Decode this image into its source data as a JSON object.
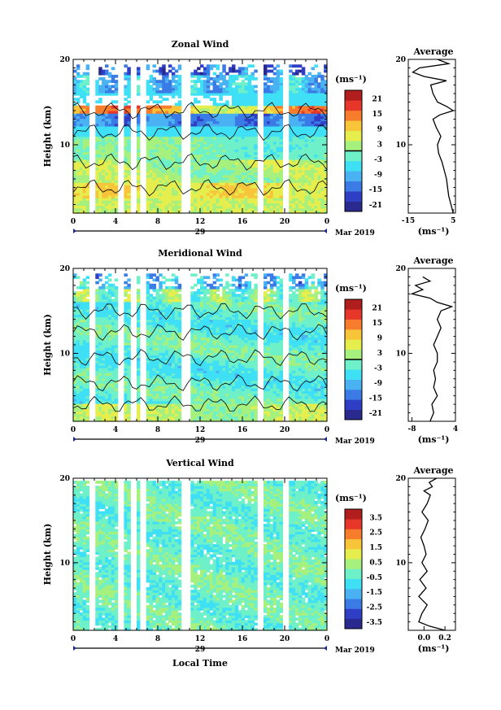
{
  "figure": {
    "xlabel": "Local Time",
    "date_label": "Mar 2019",
    "day_label": "29",
    "avg_title": "Average",
    "unit": "(ms⁻¹)",
    "ylabel": "Height (km)"
  },
  "chart_data": [
    {
      "type": "heatmap",
      "title": "Zonal Wind",
      "ylabel": "Height (km)",
      "xlabel": "",
      "xlim": [
        0,
        24
      ],
      "ylim": [
        2,
        20
      ],
      "xticks": [
        "0",
        "4",
        "8",
        "12",
        "16",
        "20",
        "0"
      ],
      "yticks": [
        "20",
        "10"
      ],
      "colorbar": {
        "unit": "(ms⁻¹)",
        "min": -24,
        "max": 24,
        "ticks": [
          "21",
          "15",
          "9",
          "3",
          "-3",
          "-9",
          "-15",
          "-21"
        ],
        "zero_line": true
      },
      "profile": {
        "title": "Average",
        "xlim": [
          -15,
          6
        ],
        "xticks": [
          "-15",
          "5"
        ],
        "xlabel": "(ms⁻¹)",
        "heights": [
          2,
          3,
          4,
          5,
          6,
          7,
          8,
          9,
          10,
          11,
          12,
          13,
          13.5,
          14,
          14.5,
          15,
          16,
          17,
          17.5,
          18,
          18.5,
          19,
          19.5,
          20
        ],
        "values": [
          5,
          4,
          3,
          2.5,
          2,
          1,
          0,
          -1.5,
          -2,
          -0.5,
          -2.5,
          -4,
          -1,
          5,
          2,
          -2,
          -4,
          -5,
          2,
          -8,
          -13,
          -10,
          3,
          -2
        ]
      },
      "gaps": [
        [
          1.7,
          2.0
        ],
        [
          4.2,
          4.6
        ],
        [
          5.6,
          5.9
        ],
        [
          6.4,
          6.7
        ],
        [
          10.5,
          11.0
        ],
        [
          17.6,
          17.9
        ],
        [
          20.0,
          20.3
        ]
      ]
    },
    {
      "type": "heatmap",
      "title": "Meridional Wind",
      "ylabel": "Height (km)",
      "xlabel": "",
      "xlim": [
        0,
        24
      ],
      "ylim": [
        2,
        20
      ],
      "xticks": [
        "0",
        "4",
        "8",
        "12",
        "16",
        "20",
        "0"
      ],
      "yticks": [
        "20",
        "10"
      ],
      "colorbar": {
        "unit": "(ms⁻¹)",
        "min": -24,
        "max": 24,
        "ticks": [
          "21",
          "15",
          "9",
          "3",
          "-3",
          "-9",
          "-15",
          "-21"
        ],
        "zero_line": true
      },
      "profile": {
        "title": "Average",
        "xlim": [
          -9,
          4
        ],
        "xticks": [
          "-8",
          "4"
        ],
        "xlabel": "(ms⁻¹)",
        "heights": [
          2,
          3,
          4,
          5,
          6,
          7,
          8,
          9,
          10,
          11,
          12,
          13,
          14,
          15,
          15.5,
          16,
          16.5,
          17,
          17.5,
          18,
          18.5,
          19
        ],
        "values": [
          -3,
          -2,
          -2.5,
          -1,
          -2,
          -1.5,
          -2,
          -1,
          -1,
          -2,
          -1,
          0,
          -1,
          0,
          3,
          -1,
          -3,
          -8,
          -5,
          -7,
          -3,
          -5
        ]
      },
      "gaps": [
        [
          1.7,
          2.0
        ],
        [
          4.2,
          4.6
        ],
        [
          5.6,
          5.9
        ],
        [
          6.4,
          6.7
        ],
        [
          10.5,
          11.0
        ],
        [
          17.6,
          17.9
        ],
        [
          20.0,
          20.3
        ]
      ]
    },
    {
      "type": "heatmap",
      "title": "Vertical Wind",
      "ylabel": "Height (km)",
      "xlabel": "Local Time",
      "xlim": [
        0,
        24
      ],
      "ylim": [
        2,
        20
      ],
      "xticks": [
        "0",
        "4",
        "8",
        "12",
        "16",
        "20",
        "0"
      ],
      "yticks": [
        "20",
        "10"
      ],
      "colorbar": {
        "unit": "(ms⁻¹)",
        "min": -4,
        "max": 4,
        "ticks": [
          "3.5",
          "2.5",
          "1.5",
          "0.5",
          "-0.5",
          "-1.5",
          "-2.5",
          "-3.5"
        ],
        "zero_line": false
      },
      "profile": {
        "title": "Average",
        "xlim": [
          -0.15,
          0.3
        ],
        "xticks": [
          "0.0",
          "0.2"
        ],
        "xlabel": "(ms⁻¹)",
        "heights": [
          2,
          2.5,
          3,
          4,
          5,
          6,
          7,
          8,
          9,
          10,
          11,
          12,
          13,
          14,
          15,
          16,
          17,
          18,
          18.5,
          19,
          19.5,
          20
        ],
        "values": [
          0.2,
          0.05,
          -0.05,
          -0.02,
          0.03,
          -0.05,
          0.02,
          -0.04,
          0.03,
          -0.02,
          0.02,
          0.0,
          -0.03,
          0.01,
          0.04,
          -0.02,
          0.03,
          0.06,
          0.0,
          0.08,
          0.05,
          0.12
        ]
      },
      "gaps": [
        [
          1.7,
          2.0
        ],
        [
          4.2,
          4.6
        ],
        [
          5.6,
          5.9
        ],
        [
          6.4,
          6.7
        ],
        [
          10.5,
          11.0
        ],
        [
          17.6,
          17.9
        ],
        [
          20.0,
          20.3
        ]
      ]
    }
  ],
  "colors": {
    "scale": [
      "#2a2a8e",
      "#2e3fc6",
      "#3a7be6",
      "#4ab2f2",
      "#3fe0f5",
      "#6ef0c8",
      "#a6f07e",
      "#e6ee4e",
      "#f8c43a",
      "#f77c2c",
      "#e6372a",
      "#b01e1e"
    ]
  }
}
